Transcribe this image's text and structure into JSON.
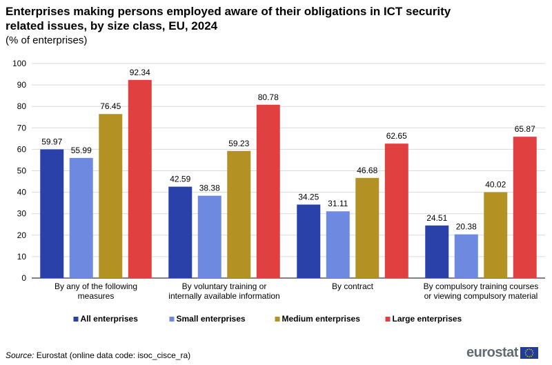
{
  "header": {
    "title": "Enterprises making persons employed aware of their obligations in ICT security related issues, by size class, EU, 2024",
    "subtitle": "(% of enterprises)"
  },
  "footer": {
    "source_label": "Source:",
    "source_text": " Eurostat (online data code: isoc_cisce_ra)",
    "logo_text": "eurostat"
  },
  "colors": {
    "All enterprises": "#2941a8",
    "Small enterprises": "#6e8ae0",
    "Medium enterprises": "#b39223",
    "Large enterprises": "#e04040"
  },
  "chart_data": {
    "type": "bar",
    "title": "Enterprises making persons employed aware of their obligations in ICT security related issues, by size class, EU, 2024",
    "subtitle": "(% of enterprises)",
    "categories": [
      [
        "By any of the following",
        "measures"
      ],
      [
        "By voluntary training or",
        "internally available information"
      ],
      [
        "By contract"
      ],
      [
        "By compulsory training courses",
        "or viewing compulsory material"
      ]
    ],
    "series": [
      {
        "name": "All enterprises",
        "values": [
          59.97,
          42.59,
          34.25,
          24.51
        ]
      },
      {
        "name": "Small enterprises",
        "values": [
          55.99,
          38.38,
          31.11,
          20.38
        ]
      },
      {
        "name": "Medium enterprises",
        "values": [
          76.45,
          59.23,
          46.68,
          40.02
        ]
      },
      {
        "name": "Large enterprises",
        "values": [
          92.34,
          80.78,
          62.65,
          65.87
        ]
      }
    ],
    "ylim": [
      0,
      100
    ],
    "yticks": [
      0,
      10,
      20,
      30,
      40,
      50,
      60,
      70,
      80,
      90,
      100
    ],
    "grid": true,
    "legend_position": "bottom"
  }
}
